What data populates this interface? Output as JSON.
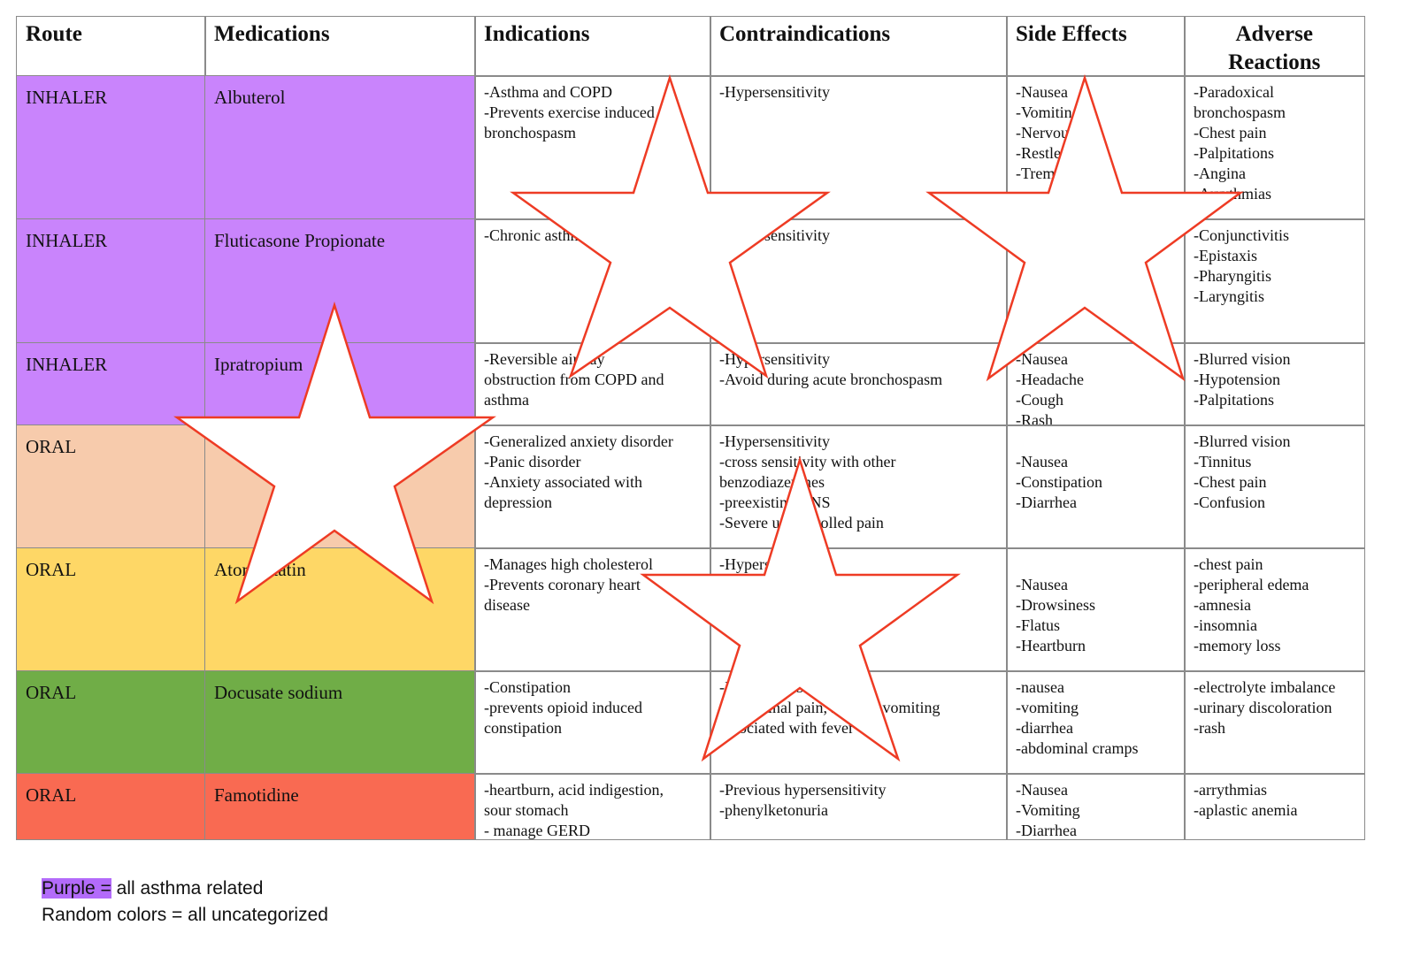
{
  "table": {
    "header": [
      "Route",
      "Medications",
      "Indications",
      "Contraindications",
      "Side Effects",
      "Adverse Reactions"
    ],
    "rows": [
      {
        "color": "#c984fc",
        "route": "INHALER",
        "medication": "Albuterol",
        "indications": [
          "-Asthma and COPD",
          "-Prevents exercise induced",
          "bronchospasm"
        ],
        "contraindications": [
          "-Hypersensitivity"
        ],
        "side_effects": [
          "-Nausea",
          "-Vomiting",
          "-Nervousness",
          "-Restlessness",
          "-Tremors"
        ],
        "adverse_reactions": [
          "-Paradoxical",
          "bronchospasm",
          "-Chest pain",
          "-Palpitations",
          "-Angina",
          "-Arrythmias"
        ]
      },
      {
        "color": "#c984fc",
        "route": "INHALER",
        "medication": "Fluticasone Propionate",
        "indications": [
          "-Chronic asthma"
        ],
        "contraindications": [
          "-Hypersensitivity"
        ],
        "adverse_reactions": [
          "-Conjunctivitis",
          "-Epistaxis",
          "-Pharyngitis",
          "-Laryngitis"
        ]
      },
      {
        "color": "#c984fc",
        "route": "INHALER",
        "medication": "Ipratropium",
        "indications": [
          "-Reversible airway",
          "obstruction from COPD and",
          "asthma"
        ],
        "contraindications": [
          "-Hypersensitivity",
          "-Avoid during acute bronchospasm"
        ],
        "side_effects": [
          "-Nausea",
          "-Headache",
          "-Cough",
          "-Rash"
        ],
        "adverse_reactions": [
          "-Blurred vision",
          "-Hypotension",
          "-Palpitations"
        ]
      },
      {
        "color": "#f7cbac",
        "route": "ORAL",
        "indications": [
          "-Generalized anxiety disorder",
          "-Panic disorder",
          "-Anxiety associated with",
          "depression"
        ],
        "contraindications": [
          "-Hypersensitivity",
          "-cross sensitivity with other",
          "benzodiazepines",
          "-preexisting CNS",
          "-Severe uncontrolled pain"
        ],
        "side_effects": [
          "-Nausea",
          "-Constipation",
          "-Diarrhea"
        ],
        "adverse_reactions": [
          "-Blurred vision",
          "-Tinnitus",
          "-Chest pain",
          "-Confusion"
        ]
      },
      {
        "color": "#fed766",
        "route": "ORAL",
        "medication": "Atorvastatin",
        "indications": [
          "-Manages high cholesterol",
          "-Prevents coronary heart",
          "disease"
        ],
        "contraindications": [
          "-Hypersensitivity"
        ],
        "side_effects": [
          "-Nausea",
          "-Drowsiness",
          "-Flatus",
          "-Heartburn"
        ],
        "adverse_reactions": [
          "-chest pain",
          "-peripheral edema",
          "-amnesia",
          "-insomnia",
          "-memory loss"
        ]
      },
      {
        "color": "#70ad47",
        "route": "ORAL",
        "medication": "Docusate sodium",
        "indications": [
          "-Constipation",
          "-prevents opioid induced",
          "constipation"
        ],
        "contraindications": [
          "-Intestinal obstruction",
          "-abdominal pain, nausea, vomiting",
          "associated with fever"
        ],
        "side_effects": [
          "-nausea",
          "-vomiting",
          "-diarrhea",
          "-abdominal cramps"
        ],
        "adverse_reactions": [
          "-electrolyte imbalance",
          "-urinary discoloration",
          "-rash"
        ]
      },
      {
        "color": "#f96a52",
        "route": "ORAL",
        "medication": "Famotidine",
        "indications": [
          "-heartburn, acid indigestion,",
          "sour stomach",
          "- manage GERD"
        ],
        "contraindications": [
          "-Previous hypersensitivity",
          "-phenylketonuria"
        ],
        "side_effects": [
          "-Nausea",
          "-Vomiting",
          "-Diarrhea"
        ],
        "adverse_reactions": [
          "-arrythmias",
          "-aplastic anemia"
        ]
      }
    ]
  },
  "legend": {
    "highlight": "Purple =",
    "highlight_color": "#b36bfa",
    "line1": "all asthma related",
    "line2": "Random colors = all uncategorized"
  }
}
